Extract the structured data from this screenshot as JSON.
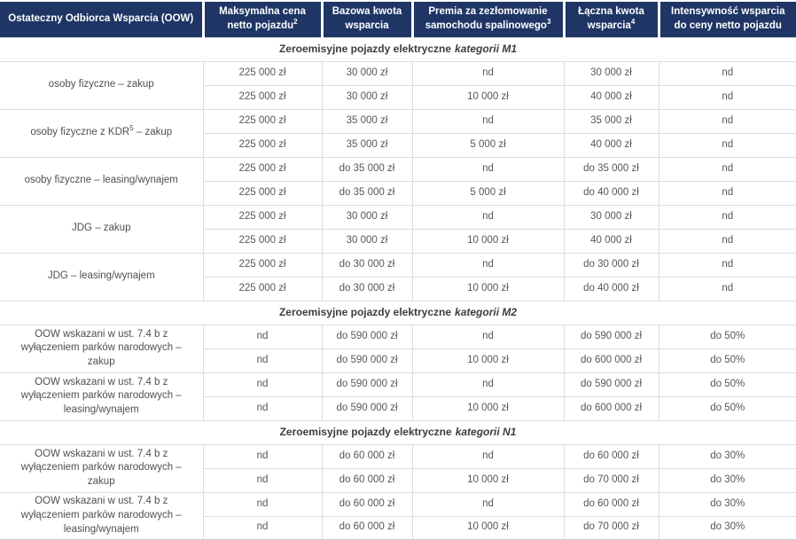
{
  "table": {
    "header": {
      "columns": [
        {
          "text": "Ostateczny Odbiorca Wsparcia (OOW)",
          "sup": ""
        },
        {
          "text": "Maksymalna cena netto pojazdu",
          "sup": "2"
        },
        {
          "text": "Bazowa kwota wsparcia",
          "sup": ""
        },
        {
          "text": "Premia za zezłomowanie samochodu spalinowego",
          "sup": "3"
        },
        {
          "text": "Łączna kwota wsparcia",
          "sup": "4"
        },
        {
          "text": "Intensywność wsparcia do ceny netto pojazdu",
          "sup": ""
        }
      ]
    },
    "sections": [
      {
        "title": "Zeroemisyjne pojazdy elektryczne",
        "title_italic": "kategorii M1",
        "groups": [
          {
            "label_pre": "osoby fizyczne – zakup",
            "label_sup": "",
            "label_post": "",
            "rows": [
              [
                "225 000 zł",
                "30 000 zł",
                "nd",
                "30 000 zł",
                "nd"
              ],
              [
                "225 000 zł",
                "30 000 zł",
                "10 000 zł",
                "40 000 zł",
                "nd"
              ]
            ]
          },
          {
            "label_pre": "osoby fizyczne z KDR",
            "label_sup": "5",
            "label_post": " – zakup",
            "rows": [
              [
                "225 000 zł",
                "35 000 zł",
                "nd",
                "35 000 zł",
                "nd"
              ],
              [
                "225 000 zł",
                "35 000 zł",
                "5 000 zł",
                "40 000 zł",
                "nd"
              ]
            ]
          },
          {
            "label_pre": "osoby fizyczne – leasing/wynajem",
            "label_sup": "",
            "label_post": "",
            "rows": [
              [
                "225 000 zł",
                "do 35 000 zł",
                "nd",
                "do 35 000 zł",
                "nd"
              ],
              [
                "225 000 zł",
                "do 35 000 zł",
                "5 000 zł",
                "do 40 000 zł",
                "nd"
              ]
            ]
          },
          {
            "label_pre": "JDG – zakup",
            "label_sup": "",
            "label_post": "",
            "rows": [
              [
                "225 000 zł",
                "30 000 zł",
                "nd",
                "30 000 zł",
                "nd"
              ],
              [
                "225 000 zł",
                "30 000 zł",
                "10 000 zł",
                "40 000 zł",
                "nd"
              ]
            ]
          },
          {
            "label_pre": "JDG – leasing/wynajem",
            "label_sup": "",
            "label_post": "",
            "rows": [
              [
                "225 000 zł",
                "do 30 000 zł",
                "nd",
                "do 30 000 zł",
                "nd"
              ],
              [
                "225 000 zł",
                "do 30 000 zł",
                "10 000 zł",
                "do 40 000 zł",
                "nd"
              ]
            ]
          }
        ]
      },
      {
        "title": "Zeroemisyjne pojazdy elektryczne",
        "title_italic": "kategorii M2",
        "groups": [
          {
            "label_pre": "OOW wskazani w ust. 7.4 b z wyłączeniem parków narodowych – zakup",
            "label_sup": "",
            "label_post": "",
            "rows": [
              [
                "nd",
                "do 590 000 zł",
                "nd",
                "do 590 000 zł",
                "do 50%"
              ],
              [
                "nd",
                "do 590 000 zł",
                "10 000 zł",
                "do 600 000 zł",
                "do 50%"
              ]
            ]
          },
          {
            "label_pre": "OOW wskazani w ust. 7.4 b z wyłączeniem parków narodowych – leasing/wynajem",
            "label_sup": "",
            "label_post": "",
            "rows": [
              [
                "nd",
                "do 590 000 zł",
                "nd",
                "do 590 000 zł",
                "do 50%"
              ],
              [
                "nd",
                "do 590 000 zł",
                "10 000 zł",
                "do 600 000 zł",
                "do 50%"
              ]
            ]
          }
        ]
      },
      {
        "title": "Zeroemisyjne pojazdy elektryczne",
        "title_italic": "kategorii N1",
        "groups": [
          {
            "label_pre": "OOW wskazani w ust. 7.4 b z wyłączeniem parków narodowych – zakup",
            "label_sup": "",
            "label_post": "",
            "rows": [
              [
                "nd",
                "do 60 000 zł",
                "nd",
                "do 60 000 zł",
                "do 30%"
              ],
              [
                "nd",
                "do 60 000 zł",
                "10 000 zł",
                "do 70 000 zł",
                "do 30%"
              ]
            ]
          },
          {
            "label_pre": "OOW wskazani w ust. 7.4 b z wyłączeniem parków narodowych – leasing/wynajem",
            "label_sup": "",
            "label_post": "",
            "rows": [
              [
                "nd",
                "do 60 000 zł",
                "nd",
                "do 60 000 zł",
                "do 30%"
              ],
              [
                "nd",
                "do 60 000 zł",
                "10 000 zł",
                "do 70 000 zł",
                "do 30%"
              ]
            ]
          }
        ]
      }
    ]
  },
  "colors": {
    "header_bg": "#1e3565",
    "header_text": "#ffffff",
    "body_text": "#575757",
    "section_text": "#3d3d3d",
    "border": "#dcdcdc",
    "border_bottom": "#c9cdd4"
  }
}
